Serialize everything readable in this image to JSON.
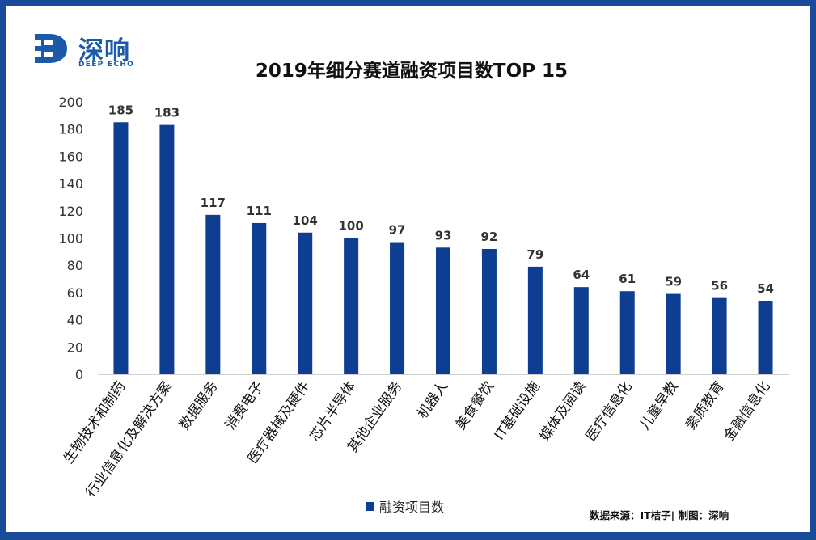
{
  "brand": {
    "name_cn": "深响",
    "name_en": "DEEP ECHO",
    "accent": "#1a5aa8",
    "border": "#1a4a9a"
  },
  "chart_data": {
    "type": "bar",
    "title": "2019年细分赛道融资项目数TOP 15",
    "categories": [
      "生物技术和制药",
      "行业信息化及解决方案",
      "数据服务",
      "消费电子",
      "医疗器械及硬件",
      "芯片半导体",
      "其他企业服务",
      "机器人",
      "美食餐饮",
      "IT基础设施",
      "媒体及阅读",
      "医疗信息化",
      "儿童早教",
      "素质教育",
      "金融信息化"
    ],
    "series": [
      {
        "name": "融资项目数",
        "values": [
          185,
          183,
          117,
          111,
          104,
          100,
          97,
          93,
          92,
          79,
          64,
          61,
          59,
          56,
          54
        ],
        "color": "#0e3e91"
      }
    ],
    "ylim": [
      0,
      200
    ],
    "yticks": [
      0,
      20,
      40,
      60,
      80,
      100,
      120,
      140,
      160,
      180,
      200
    ],
    "xlabel": "",
    "ylabel": "",
    "grid": false,
    "legend": "bottom-center"
  },
  "source_note": "数据来源：IT桔子| 制图：深响"
}
